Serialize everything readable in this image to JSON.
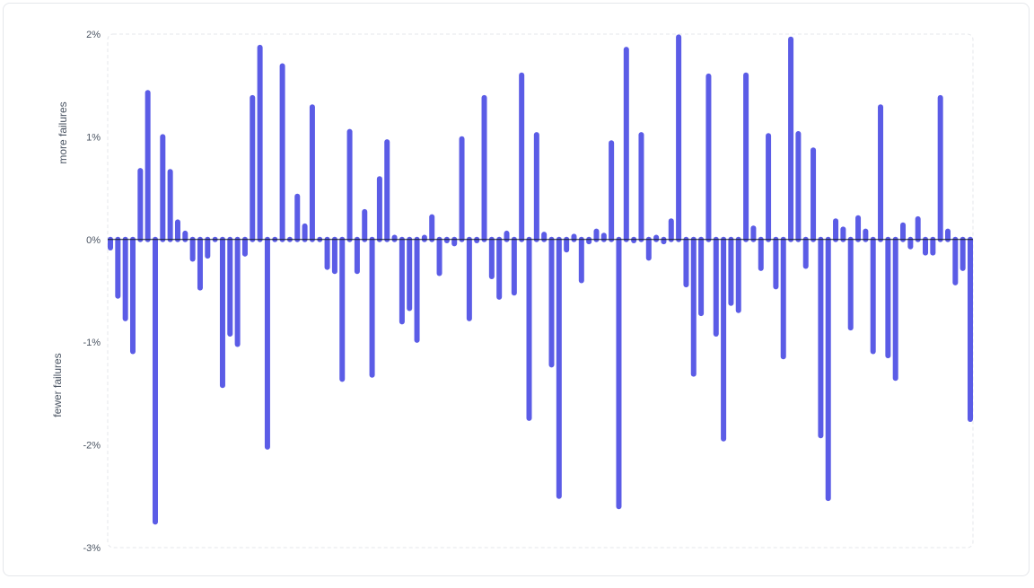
{
  "chart_data": {
    "type": "bar",
    "ylabel_positive": "more failures",
    "ylabel_negative": "fewer failures",
    "ylim": [
      -3,
      2
    ],
    "yticks": [
      {
        "value": 2,
        "label": "2%"
      },
      {
        "value": 1,
        "label": "1%"
      },
      {
        "value": 0,
        "label": "0%"
      },
      {
        "value": -1,
        "label": "-1%"
      },
      {
        "value": -2,
        "label": "-2%"
      },
      {
        "value": -3,
        "label": "-3%"
      }
    ],
    "unit": "%",
    "grid": false,
    "bar_color": "#5b5ce6",
    "values": [
      -0.08,
      -0.55,
      -0.77,
      -1.09,
      0.67,
      1.43,
      -2.75,
      1.0,
      0.66,
      0.17,
      0.06,
      -0.19,
      -0.47,
      -0.16,
      0.0,
      -1.42,
      -0.92,
      -1.02,
      -0.14,
      1.38,
      1.87,
      -2.02,
      0.0,
      1.69,
      0.0,
      0.42,
      0.13,
      1.29,
      0.0,
      -0.27,
      -0.31,
      -1.36,
      1.05,
      -0.31,
      0.27,
      -1.32,
      0.59,
      0.95,
      0.02,
      -0.8,
      -0.67,
      -0.98,
      0.02,
      0.22,
      -0.33,
      -0.01,
      -0.04,
      0.98,
      -0.77,
      -0.01,
      1.38,
      -0.36,
      -0.56,
      0.06,
      -0.52,
      1.6,
      -1.74,
      1.02,
      0.05,
      -1.22,
      -2.5,
      -0.1,
      0.03,
      -0.4,
      -0.02,
      0.08,
      0.04,
      0.94,
      -2.6,
      1.85,
      -0.01,
      1.02,
      -0.18,
      0.02,
      -0.02,
      0.18,
      1.97,
      -0.44,
      -1.31,
      -0.72,
      1.59,
      -0.92,
      -1.94,
      -0.62,
      -0.69,
      1.6,
      0.11,
      -0.28,
      1.01,
      -0.46,
      -1.14,
      1.95,
      1.03,
      -0.26,
      0.87,
      -1.91,
      -2.52,
      0.18,
      0.1,
      -0.86,
      0.21,
      0.08,
      -1.09,
      1.29,
      -1.13,
      -1.35,
      0.14,
      -0.07,
      0.2,
      -0.13,
      -0.13,
      1.38,
      0.08,
      -0.42,
      -0.28,
      -1.75
    ]
  }
}
